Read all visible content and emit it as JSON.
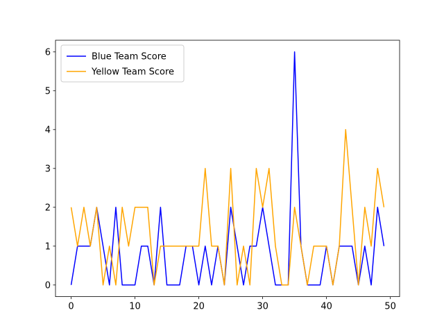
{
  "chart_data": {
    "type": "line",
    "title": "",
    "xlabel": "",
    "ylabel": "",
    "x": [
      0,
      1,
      2,
      3,
      4,
      5,
      6,
      7,
      8,
      9,
      10,
      11,
      12,
      13,
      14,
      15,
      16,
      17,
      18,
      19,
      20,
      21,
      22,
      23,
      24,
      25,
      26,
      27,
      28,
      29,
      30,
      31,
      32,
      33,
      34,
      35,
      36,
      37,
      38,
      39,
      40,
      41,
      42,
      43,
      44,
      45,
      46,
      47,
      48,
      49
    ],
    "xlim": [
      -2.45,
      51.45
    ],
    "ylim": [
      -0.3,
      6.3
    ],
    "xticks": [
      0,
      10,
      20,
      30,
      40,
      50
    ],
    "yticks": [
      0,
      1,
      2,
      3,
      4,
      5,
      6
    ],
    "grid": false,
    "legend_position": "top-left",
    "series": [
      {
        "name": "Blue Team Score",
        "color": "#0000ff",
        "values": [
          0,
          1,
          1,
          1,
          2,
          1,
          0,
          2,
          0,
          0,
          0,
          1,
          1,
          0,
          2,
          0,
          0,
          0,
          1,
          1,
          0,
          1,
          0,
          1,
          0,
          2,
          1,
          0,
          1,
          1,
          2,
          1,
          0,
          0,
          0,
          6,
          1,
          0,
          0,
          0,
          1,
          0,
          1,
          1,
          1,
          0,
          1,
          0,
          2,
          1
        ]
      },
      {
        "name": "Yellow Team Score",
        "color": "#ffa500",
        "values": [
          2,
          1,
          2,
          1,
          2,
          0,
          1,
          0,
          2,
          1,
          2,
          2,
          2,
          0,
          1,
          1,
          1,
          1,
          1,
          1,
          1,
          3,
          1,
          1,
          0,
          3,
          0,
          1,
          0,
          3,
          2,
          3,
          1,
          0,
          0,
          2,
          1,
          0,
          1,
          1,
          1,
          0,
          1,
          4,
          2,
          0,
          2,
          1,
          3,
          2
        ]
      }
    ]
  }
}
